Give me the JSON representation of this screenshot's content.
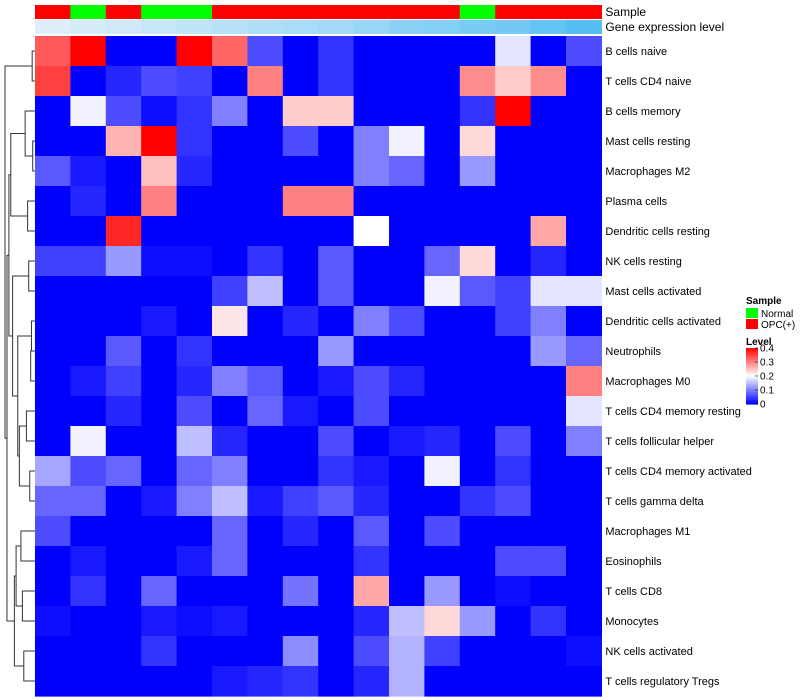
{
  "chart_data": {
    "type": "heatmap",
    "annotation_labels": [
      "Sample",
      "Gene expression level"
    ],
    "rows": [
      "B cells naive",
      "T cells CD4 naive",
      "B cells memory",
      "Mast cells resting",
      "Macrophages M2",
      "Plasma cells",
      "Dendritic cells resting",
      "NK cells resting",
      "Mast cells activated",
      "Dendritic cells activated",
      "Neutrophils",
      "Macrophages M0",
      "T cells CD4 memory resting",
      "T cells follicular helper",
      "T cells CD4 memory activated",
      "T cells gamma delta",
      "Macrophages M1",
      "Eosinophils",
      "T cells CD8",
      "Monocytes",
      "NK cells activated",
      "T cells regulatory  Tregs"
    ],
    "sample_groups": [
      "OPC(+)",
      "Normal",
      "OPC(+)",
      "Normal",
      "Normal",
      "OPC(+)",
      "OPC(+)",
      "OPC(+)",
      "OPC(+)",
      "OPC(+)",
      "OPC(+)",
      "OPC(+)",
      "Normal",
      "OPC(+)",
      "OPC(+)",
      "OPC(+)"
    ],
    "gene_expression_level": [
      0.05,
      0.1,
      0.15,
      0.2,
      0.25,
      0.3,
      0.35,
      0.4,
      0.45,
      0.5,
      0.6,
      0.65,
      0.7,
      0.75,
      0.85,
      0.95
    ],
    "values": [
      [
        0.33,
        0.4,
        0,
        0,
        0.4,
        0.32,
        0.06,
        0,
        0.04,
        0,
        0,
        0,
        0,
        0.18,
        0,
        0.06
      ],
      [
        0.35,
        0,
        0.03,
        0.06,
        0.05,
        0,
        0.3,
        0,
        0.04,
        0,
        0,
        0,
        0.29,
        0.24,
        0.29,
        0
      ],
      [
        0,
        0.19,
        0.06,
        0.01,
        0.04,
        0.1,
        0,
        0.24,
        0.24,
        0,
        0,
        0,
        0.04,
        0.4,
        0,
        0
      ],
      [
        0,
        0,
        0.26,
        0.4,
        0.04,
        0,
        0,
        0.06,
        0,
        0.1,
        0.19,
        0,
        0.23,
        0,
        0,
        0
      ],
      [
        0.07,
        0.02,
        0,
        0.25,
        0.03,
        0,
        0,
        0,
        0,
        0.1,
        0.08,
        0,
        0.12,
        0,
        0,
        0
      ],
      [
        0,
        0.03,
        0,
        0.3,
        0,
        0,
        0,
        0.3,
        0.3,
        0,
        0,
        0,
        0,
        0,
        0,
        0
      ],
      [
        0,
        0,
        0.37,
        0,
        0,
        0,
        0,
        0,
        0,
        0.2,
        0,
        0,
        0,
        0,
        0.27,
        0
      ],
      [
        0.05,
        0.05,
        0.12,
        0.01,
        0.01,
        0,
        0.04,
        0,
        0.07,
        0,
        0,
        0.08,
        0.23,
        0,
        0.03,
        0
      ],
      [
        0,
        0,
        0,
        0,
        0,
        0.05,
        0.15,
        0,
        0.07,
        0,
        0,
        0.19,
        0.07,
        0.05,
        0.18,
        0.18
      ],
      [
        0,
        0,
        0,
        0.02,
        0,
        0.22,
        0,
        0.03,
        0,
        0.1,
        0.06,
        0,
        0,
        0.05,
        0.1,
        0
      ],
      [
        0,
        0,
        0.07,
        0,
        0.04,
        0,
        0,
        0,
        0.12,
        0,
        0,
        0,
        0,
        0,
        0.12,
        0.08
      ],
      [
        0,
        0.02,
        0.05,
        0,
        0.03,
        0.1,
        0.07,
        0,
        0.02,
        0.06,
        0.03,
        0,
        0,
        0,
        0,
        0.3
      ],
      [
        0,
        0,
        0.03,
        0,
        0.06,
        0,
        0.08,
        0.02,
        0,
        0.06,
        0,
        0,
        0,
        0,
        0,
        0.18
      ],
      [
        0,
        0.19,
        0,
        0,
        0.15,
        0.03,
        0,
        0,
        0.06,
        0,
        0.02,
        0.03,
        0,
        0.06,
        0,
        0.1
      ],
      [
        0.13,
        0.06,
        0.08,
        0,
        0.08,
        0.1,
        0,
        0,
        0.04,
        0.02,
        0,
        0.19,
        0,
        0.04,
        0,
        0
      ],
      [
        0.08,
        0.08,
        0,
        0.02,
        0.1,
        0.15,
        0.02,
        0.05,
        0.07,
        0.03,
        0,
        0,
        0.04,
        0.06,
        0,
        0
      ],
      [
        0.06,
        0,
        0,
        0,
        0,
        0.08,
        0,
        0.03,
        0,
        0.07,
        0,
        0.06,
        0,
        0,
        0,
        0
      ],
      [
        0,
        0.02,
        0,
        0,
        0.02,
        0.08,
        0,
        0,
        0,
        0.04,
        0,
        0,
        0,
        0.06,
        0.06,
        0
      ],
      [
        0,
        0.04,
        0,
        0.08,
        0,
        0,
        0,
        0.09,
        0,
        0.27,
        0,
        0.12,
        0,
        0.01,
        0,
        0
      ],
      [
        0.01,
        0,
        0,
        0.02,
        0.01,
        0.02,
        0,
        0,
        0,
        0.03,
        0.15,
        0.23,
        0.12,
        0,
        0.04,
        0
      ],
      [
        0,
        0,
        0,
        0.04,
        0,
        0,
        0,
        0.11,
        0,
        0.06,
        0.14,
        0.05,
        0,
        0,
        0,
        0.01
      ],
      [
        0,
        0,
        0,
        0,
        0,
        0.02,
        0.03,
        0.04,
        0,
        0.03,
        0.14,
        0,
        0,
        0,
        0,
        0
      ]
    ],
    "dendrogram_merges": [
      [
        3,
        4
      ],
      [
        0,
        1
      ],
      [
        9,
        10
      ],
      [
        10,
        11
      ],
      [
        14,
        15
      ],
      [
        7,
        8
      ],
      [
        5,
        6
      ],
      [
        12,
        13
      ],
      [
        2,
        3
      ],
      [
        20,
        21
      ],
      [
        18,
        19
      ],
      [
        16,
        17
      ],
      [
        12,
        14
      ],
      [
        9,
        12
      ],
      [
        16,
        18
      ],
      [
        16,
        20
      ],
      [
        7,
        9
      ],
      [
        2,
        5
      ],
      [
        2,
        7
      ],
      [
        2,
        16
      ],
      [
        0,
        2
      ]
    ],
    "color_scale": {
      "min": 0,
      "max": 0.4,
      "low": "#0000ff",
      "mid": "#ffffff",
      "high": "#ff0000",
      "mid_value": 0.2
    },
    "annotation_colors": {
      "Normal": "#00ff00",
      "OPC(+)": "#ff0000",
      "expr_low": "#e6f1fa",
      "expr_high": "#4dbcf2"
    },
    "legend": {
      "sample_title": "Sample",
      "sample_items": [
        {
          "label": "Normal",
          "color": "#00ff00"
        },
        {
          "label": "OPC(+)",
          "color": "#ff0000"
        }
      ],
      "level_title": "Level",
      "level_ticks": [
        "0.4",
        "0.3",
        "0.2",
        "0.1",
        "0"
      ],
      "level_tick_values": [
        0.4,
        0.3,
        0.2,
        0.1,
        0
      ],
      "placement": "right"
    }
  }
}
